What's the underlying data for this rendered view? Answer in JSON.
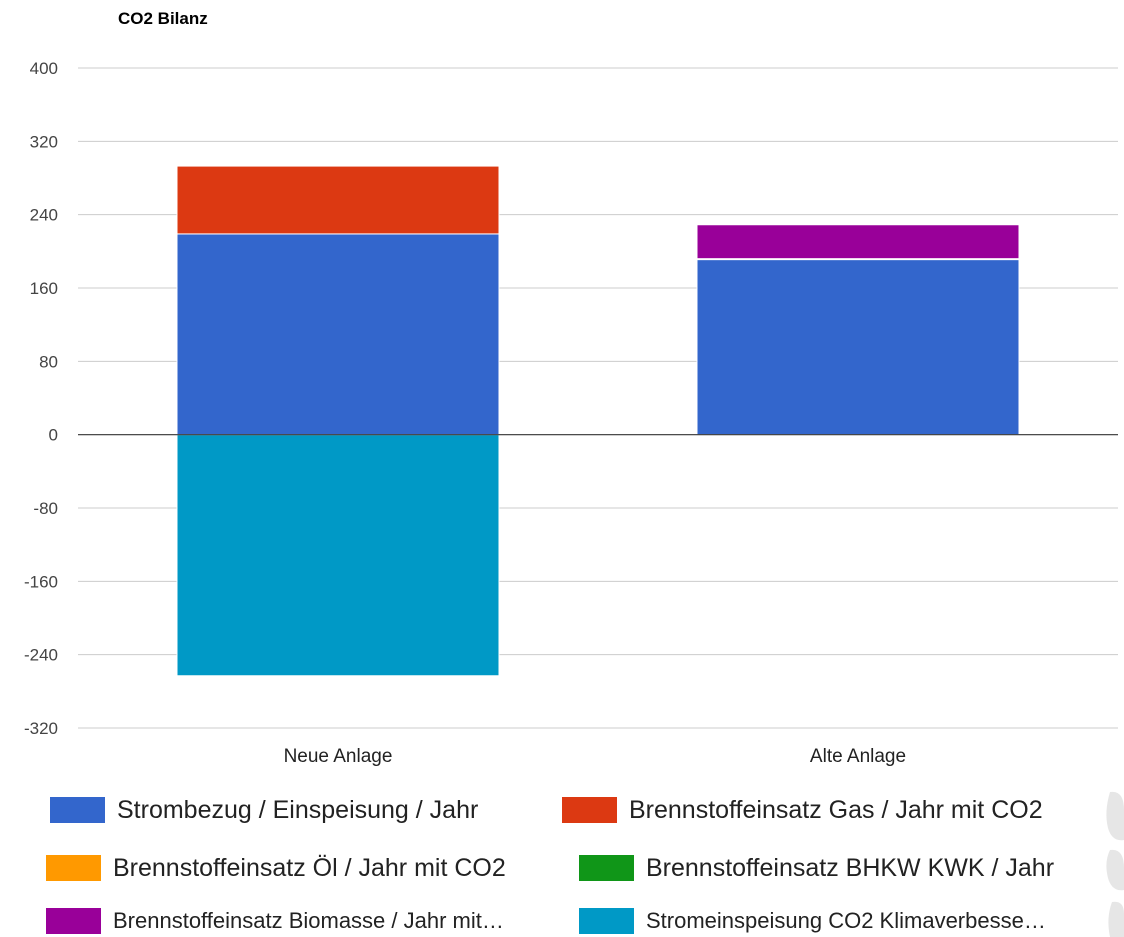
{
  "chart_data": {
    "type": "bar",
    "stacked": true,
    "title": "CO2 Bilanz",
    "categories": [
      "Neue Anlage",
      "Alte Anlage"
    ],
    "ylim": [
      -320,
      400
    ],
    "yticks": [
      400,
      320,
      240,
      160,
      80,
      0,
      -80,
      -160,
      -240,
      -320
    ],
    "grid": true,
    "legend_position": "bottom",
    "series": [
      {
        "name": "Strombezug / Einspeisung / Jahr",
        "color": "#3366cc",
        "values": [
          219,
          191
        ]
      },
      {
        "name": "Brennstoffeinsatz Gas / Jahr mit CO2",
        "color": "#dc3912",
        "values": [
          74,
          0
        ]
      },
      {
        "name": "Brennstoffeinsatz Öl / Jahr mit CO2",
        "color": "#ff9900",
        "values": [
          0,
          0
        ]
      },
      {
        "name": "Brennstoffeinsatz BHKW KWK / Jahr",
        "color": "#109618",
        "values": [
          0,
          1
        ]
      },
      {
        "name": "Brennstoffeinsatz Biomasse / Jahr mit…",
        "color": "#990099",
        "values": [
          0,
          37
        ]
      },
      {
        "name": "Stromeinspeisung CO2 Klimaverbesse…",
        "color": "#0099c6",
        "values": [
          -263,
          0
        ]
      }
    ]
  }
}
